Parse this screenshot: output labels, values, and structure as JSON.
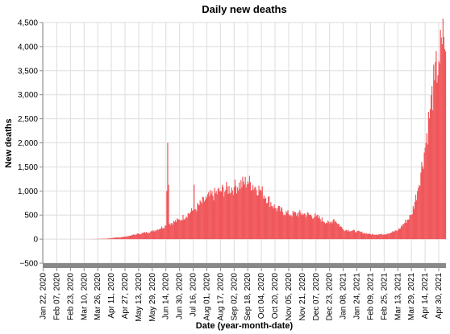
{
  "chart_data": {
    "type": "bar",
    "title": "Daily new deaths",
    "xlabel": "Date (year-month-date)",
    "ylabel": "New deaths",
    "ylim": [
      -500,
      4500
    ],
    "yticks": [
      -500,
      0,
      500,
      1000,
      1500,
      2000,
      2500,
      3000,
      3500,
      4000,
      4500
    ],
    "ytick_labels": [
      "−500",
      "0",
      "500",
      "1,000",
      "1,500",
      "2,000",
      "2,500",
      "3,000",
      "3,500",
      "4,000",
      "4,500"
    ],
    "x_start": "2020-01-22",
    "x_end": "2021-05-08",
    "x_tick_labels": [
      "Jan 22, 2020",
      "Feb 07, 2020",
      "Feb 23, 2020",
      "Mar 10, 2020",
      "Mar 26, 2020",
      "Apr 11, 2020",
      "Apr 27, 2020",
      "May 13, 2020",
      "May 29, 2020",
      "Jun 14, 2020",
      "Jun 30, 2020",
      "Jul 16, 2020",
      "Aug 01, 2020",
      "Aug 17, 2020",
      "Sep 02, 2020",
      "Sep 18, 2020",
      "Oct 04, 2020",
      "Oct 20, 2020",
      "Nov 05, 2020",
      "Nov 21, 2020",
      "Dec 07, 2020",
      "Dec 23, 2020",
      "Jan 08, 2021",
      "Jan 24, 2021",
      "Feb 09, 2021",
      "Feb 25, 2021",
      "Mar 13, 2021",
      "Mar 29, 2021",
      "Apr 14, 2021",
      "Apr 30, 2021"
    ],
    "bar_color": "#f0575b",
    "grid": true,
    "series": [
      {
        "values": [
          {
            "x": "2020-01-22",
            "y": 0
          },
          {
            "x": "2020-02-07",
            "y": 0
          },
          {
            "x": "2020-02-23",
            "y": 0
          },
          {
            "x": "2020-03-10",
            "y": 0
          },
          {
            "x": "2020-03-20",
            "y": 2
          },
          {
            "x": "2020-03-26",
            "y": 5
          },
          {
            "x": "2020-04-05",
            "y": 10
          },
          {
            "x": "2020-04-11",
            "y": 20
          },
          {
            "x": "2020-04-27",
            "y": 50
          },
          {
            "x": "2020-05-13",
            "y": 110
          },
          {
            "x": "2020-05-29",
            "y": 160
          },
          {
            "x": "2020-06-14",
            "y": 280
          },
          {
            "x": "2020-06-16",
            "y": 2003
          },
          {
            "x": "2020-06-18",
            "y": 320
          },
          {
            "x": "2020-06-30",
            "y": 400
          },
          {
            "x": "2020-07-16",
            "y": 600
          },
          {
            "x": "2020-07-17",
            "y": 1130
          },
          {
            "x": "2020-07-18",
            "y": 620
          },
          {
            "x": "2020-08-01",
            "y": 850
          },
          {
            "x": "2020-08-17",
            "y": 1000
          },
          {
            "x": "2020-09-02",
            "y": 1080
          },
          {
            "x": "2020-09-18",
            "y": 1200
          },
          {
            "x": "2020-10-04",
            "y": 1000
          },
          {
            "x": "2020-10-20",
            "y": 650
          },
          {
            "x": "2020-11-05",
            "y": 520
          },
          {
            "x": "2020-11-21",
            "y": 530
          },
          {
            "x": "2020-12-07",
            "y": 470
          },
          {
            "x": "2020-12-23",
            "y": 320
          },
          {
            "x": "2020-12-28",
            "y": 420
          },
          {
            "x": "2021-01-08",
            "y": 200
          },
          {
            "x": "2021-01-24",
            "y": 160
          },
          {
            "x": "2021-02-09",
            "y": 100
          },
          {
            "x": "2021-02-25",
            "y": 100
          },
          {
            "x": "2021-03-13",
            "y": 180
          },
          {
            "x": "2021-03-29",
            "y": 500
          },
          {
            "x": "2021-04-05",
            "y": 1000
          },
          {
            "x": "2021-04-14",
            "y": 1900
          },
          {
            "x": "2021-04-20",
            "y": 2700
          },
          {
            "x": "2021-04-25",
            "y": 3300
          },
          {
            "x": "2021-04-30",
            "y": 3700
          },
          {
            "x": "2021-05-04",
            "y": 4050
          },
          {
            "x": "2021-05-06",
            "y": 4200
          },
          {
            "x": "2021-05-08",
            "y": 3900
          }
        ]
      }
    ]
  }
}
